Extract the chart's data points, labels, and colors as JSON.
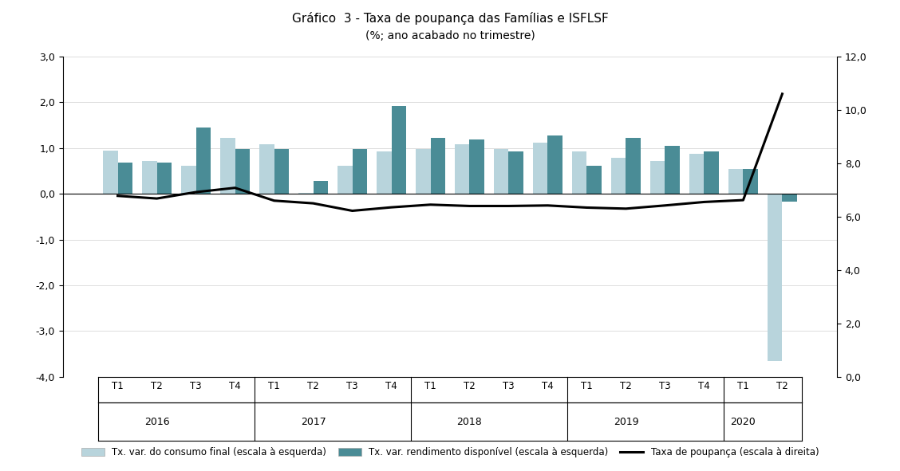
{
  "title_line1": "Gráfico  3 - Taxa de poupança das Famílias e ISFLSF",
  "title_line2": "(%; ano acabado no trimestre)",
  "quarters": [
    "T1",
    "T2",
    "T3",
    "T4",
    "T1",
    "T2",
    "T3",
    "T4",
    "T1",
    "T2",
    "T3",
    "T4",
    "T1",
    "T2",
    "T3",
    "T4",
    "T1",
    "T2"
  ],
  "years": [
    "2016",
    "2016",
    "2016",
    "2016",
    "2017",
    "2017",
    "2017",
    "2017",
    "2018",
    "2018",
    "2018",
    "2018",
    "2019",
    "2019",
    "2019",
    "2019",
    "2020",
    "2020"
  ],
  "year_labels": [
    "2016",
    "2017",
    "2018",
    "2019",
    "2020"
  ],
  "consumo_final": [
    0.95,
    0.72,
    0.62,
    1.22,
    1.08,
    0.02,
    0.62,
    0.92,
    0.98,
    1.08,
    0.98,
    1.12,
    0.92,
    0.78,
    0.72,
    0.88,
    0.55,
    -3.65
  ],
  "rendimento_disp": [
    0.68,
    0.68,
    1.45,
    0.98,
    0.98,
    0.28,
    0.98,
    1.92,
    1.22,
    1.18,
    0.92,
    1.28,
    0.62,
    1.22,
    1.05,
    0.92,
    0.55,
    -0.18
  ],
  "taxa_poupanca": [
    6.78,
    6.68,
    6.92,
    7.08,
    6.6,
    6.5,
    6.22,
    6.35,
    6.45,
    6.4,
    6.4,
    6.42,
    6.34,
    6.3,
    6.42,
    6.55,
    6.62,
    10.6
  ],
  "left_ylim": [
    -4.0,
    3.0
  ],
  "right_ylim": [
    0.0,
    12.0
  ],
  "left_ytick_vals": [
    -4.0,
    -3.0,
    -2.0,
    -1.0,
    0.0,
    1.0,
    2.0,
    3.0
  ],
  "right_ytick_vals": [
    0.0,
    2.0,
    4.0,
    6.0,
    8.0,
    10.0,
    12.0
  ],
  "color_consumo": "#b8d4dc",
  "color_rendimento": "#4a8c96",
  "color_linha": "#000000",
  "background_color": "#ffffff",
  "legend_label_consumo": "Tx. var. do consumo final (escala à esquerda)",
  "legend_label_rendimento": "Tx. var. rendimento disponível (escala à esquerda)",
  "legend_label_poupanca": "Taxa de poupança (escala à direita)"
}
